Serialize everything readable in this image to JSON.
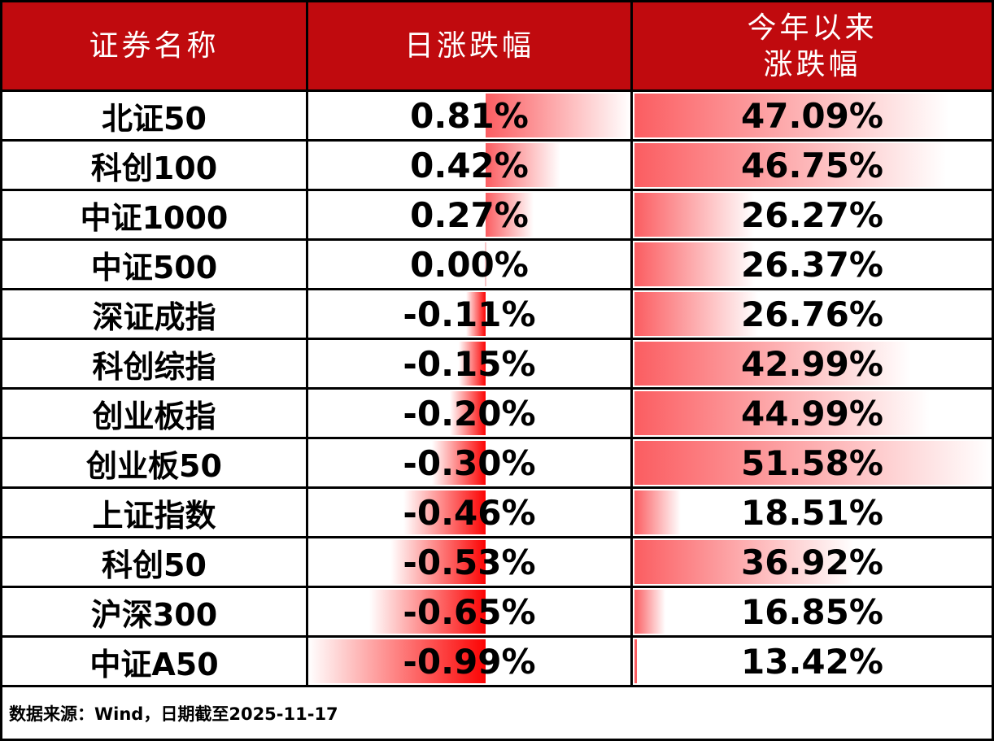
{
  "colors": {
    "header_bg": "#C00A0E",
    "positive_bar": "#FB5D61",
    "negative_bar": "#FC0404",
    "border": "#000000",
    "text": "#000000",
    "header_text": "#FFFFFF"
  },
  "header": {
    "col1": "证券名称",
    "col2": "日涨跌幅",
    "col3_line1": "今年以来",
    "col3_line2": "涨跌幅"
  },
  "footer": {
    "source": "数据来源：Wind，日期截至2025-11-17"
  },
  "chart_data": {
    "type": "table",
    "columns": [
      "证券名称",
      "日涨跌幅",
      "今年以来涨跌幅"
    ],
    "daily_axis": {
      "min": -0.99,
      "max": 0.81
    },
    "ytd_axis": {
      "min": 13.42,
      "max": 51.58
    },
    "rows": [
      {
        "name": "北证50",
        "daily": "0.81%",
        "daily_value": 0.81,
        "ytd": "47.09%",
        "ytd_value": 47.09
      },
      {
        "name": "科创100",
        "daily": "0.42%",
        "daily_value": 0.42,
        "ytd": "46.75%",
        "ytd_value": 46.75
      },
      {
        "name": "中证1000",
        "daily": "0.27%",
        "daily_value": 0.27,
        "ytd": "26.27%",
        "ytd_value": 26.27
      },
      {
        "name": "中证500",
        "daily": "0.00%",
        "daily_value": 0.0,
        "ytd": "26.37%",
        "ytd_value": 26.37
      },
      {
        "name": "深证成指",
        "daily": "-0.11%",
        "daily_value": -0.11,
        "ytd": "26.76%",
        "ytd_value": 26.76
      },
      {
        "name": "科创综指",
        "daily": "-0.15%",
        "daily_value": -0.15,
        "ytd": "42.99%",
        "ytd_value": 42.99
      },
      {
        "name": "创业板指",
        "daily": "-0.20%",
        "daily_value": -0.2,
        "ytd": "44.99%",
        "ytd_value": 44.99
      },
      {
        "name": "创业板50",
        "daily": "-0.30%",
        "daily_value": -0.3,
        "ytd": "51.58%",
        "ytd_value": 51.58
      },
      {
        "name": "上证指数",
        "daily": "-0.46%",
        "daily_value": -0.46,
        "ytd": "18.51%",
        "ytd_value": 18.51
      },
      {
        "name": "科创50",
        "daily": "-0.53%",
        "daily_value": -0.53,
        "ytd": "36.92%",
        "ytd_value": 36.92
      },
      {
        "name": "沪深300",
        "daily": "-0.65%",
        "daily_value": -0.65,
        "ytd": "16.85%",
        "ytd_value": 16.85
      },
      {
        "name": "中证A50",
        "daily": "-0.99%",
        "daily_value": -0.99,
        "ytd": "13.42%",
        "ytd_value": 13.42
      }
    ]
  }
}
